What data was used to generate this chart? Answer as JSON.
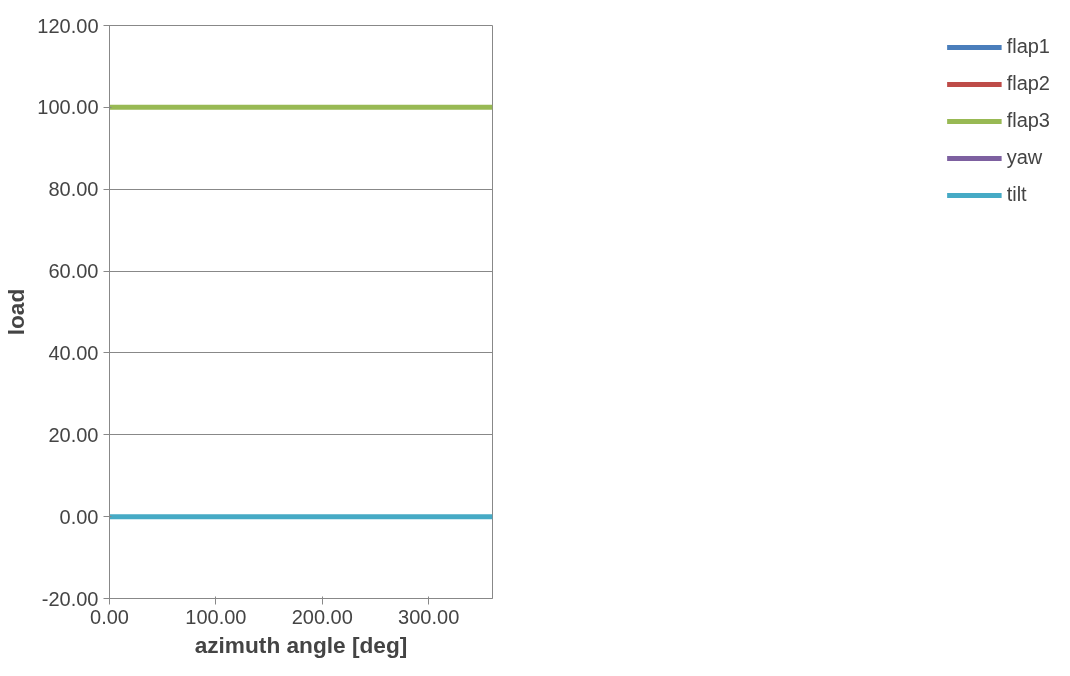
{
  "chart_data": {
    "type": "line",
    "xlabel": "azimuth angle [deg]",
    "ylabel": "load",
    "x": [
      0,
      360
    ],
    "series": [
      {
        "name": "flap1",
        "color": "#4a7ebb",
        "values": [
          null,
          null
        ]
      },
      {
        "name": "flap2",
        "color": "#be4b48",
        "values": [
          null,
          null
        ]
      },
      {
        "name": "flap3",
        "color": "#98b954",
        "values": [
          100,
          100
        ]
      },
      {
        "name": "yaw",
        "color": "#7d60a0",
        "values": [
          null,
          null
        ]
      },
      {
        "name": "tilt",
        "color": "#46aac5",
        "values": [
          0,
          0
        ]
      }
    ],
    "xlim": [
      0,
      360
    ],
    "xticks": [
      {
        "value": 0,
        "label": "0.00"
      },
      {
        "value": 100,
        "label": "100.00"
      },
      {
        "value": 200,
        "label": "200.00"
      },
      {
        "value": 300,
        "label": "300.00"
      }
    ],
    "ylim": [
      -20,
      120
    ],
    "yticks": [
      {
        "value": -20,
        "label": "-20.00"
      },
      {
        "value": 0,
        "label": "0.00"
      },
      {
        "value": 20,
        "label": "20.00"
      },
      {
        "value": 40,
        "label": "40.00"
      },
      {
        "value": 60,
        "label": "60.00"
      },
      {
        "value": 80,
        "label": "80.00"
      },
      {
        "value": 100,
        "label": "100.00"
      },
      {
        "value": 120,
        "label": "120.00"
      }
    ],
    "grid": "y",
    "legend": "right",
    "marker": "none",
    "line_style": "solid"
  }
}
